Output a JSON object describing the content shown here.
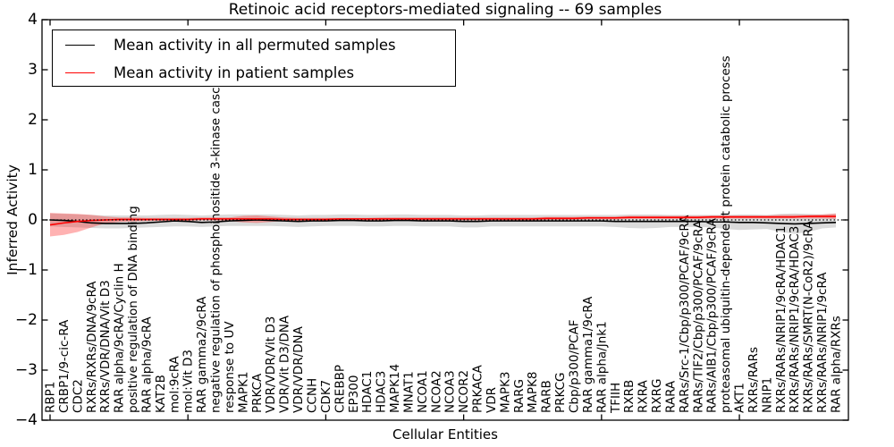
{
  "title": "Retinoic acid receptors-mediated signaling -- 69 samples",
  "axes": {
    "ylabel": "Inferred Activity",
    "xlabel": "Cellular Entities",
    "ytick_labels": [
      "4",
      "3",
      "2",
      "1",
      "0",
      "−1",
      "−2",
      "−3",
      "−4"
    ],
    "ytick_values": [
      4,
      3,
      2,
      1,
      0,
      -1,
      -2,
      -3,
      -4
    ]
  },
  "legend": {
    "entries": [
      {
        "label": "Mean activity in all permuted samples",
        "color": "#000000"
      },
      {
        "label": "Mean activity in patient samples",
        "color": "#ff0000"
      }
    ]
  },
  "colors": {
    "permuted_line": "#000000",
    "patient_line": "#ff0000",
    "permuted_band": "#000000",
    "patient_band": "#ff0000",
    "frame": "#000000"
  },
  "chart_data": {
    "type": "line",
    "title": "Retinoic acid receptors-mediated signaling -- 69 samples",
    "xlabel": "Cellular Entities",
    "ylabel": "Inferred Activity",
    "ylim": [
      -4,
      4
    ],
    "grid": false,
    "legend_position": "upper left",
    "zero_line": true,
    "categories": [
      "RBP1",
      "CRBP1/9-cic-RA",
      "CDC2",
      "RXRs/RXRs/DNA/9cRA",
      "RXRs/VDR/DNA/Vit D3",
      "RAR alpha/9cRA/Cyclin H",
      "positive regulation of DNA binding",
      "RAR alpha/9cRA",
      "KAT2B",
      "mol:9cRA",
      "mol:Vit D3",
      "RAR gamma2/9cRA",
      "negative regulation of phosphoinositide 3-kinase casc",
      "response to UV",
      "MAPK1",
      "PRKCA",
      "VDR/VDR/Vit D3",
      "VDR/Vit D3/DNA",
      "VDR/VDR/DNA",
      "CCNH",
      "CDK7",
      "CREBBP",
      "EP300",
      "HDAC1",
      "HDAC3",
      "MAPK14",
      "MNAT1",
      "NCOA1",
      "NCOA2",
      "NCOA3",
      "NCOR2",
      "PRKACA",
      "VDR",
      "MAPK3",
      "RARG",
      "MAPK8",
      "RARB",
      "PRKCG",
      "Cbp/p300/PCAF",
      "RAR gamma1/9cRA",
      "RAR alpha/Jnk1",
      "TFIIH",
      "RXRB",
      "RXRA",
      "RXRG",
      "RARA",
      "RARs/Src-1/Cbp/p300/PCAF/9cRA",
      "RARs/TIF2/Cbp/p300/PCAF/9cRA",
      "RARs/AIB1/Cbp/p300/PCAF/9cRA",
      "proteasomal ubiquitin-dependent protein catabolic process",
      "AKT1",
      "RXRs/RARs",
      "NRIP1",
      "RXRs/RARs/NRIP1/9cRA/HDAC1",
      "RXRs/RARs/NRIP1/9cRA/HDAC3",
      "RXRs/RARs/SMRT(N-CoR2)/9cRA",
      "RXRs/RARs/NRIP1/9cRA",
      "RAR alpha/RXRs"
    ],
    "series": [
      {
        "name": "Mean activity in all permuted samples",
        "color": "#000000",
        "values": [
          0.0,
          -0.01,
          -0.03,
          -0.06,
          -0.07,
          -0.07,
          -0.07,
          -0.06,
          -0.04,
          -0.02,
          -0.03,
          -0.05,
          -0.04,
          -0.02,
          -0.01,
          0.0,
          -0.01,
          -0.02,
          -0.03,
          -0.02,
          -0.02,
          -0.01,
          -0.01,
          -0.02,
          -0.02,
          -0.01,
          -0.01,
          -0.02,
          -0.02,
          -0.02,
          -0.03,
          -0.03,
          -0.02,
          -0.02,
          -0.02,
          -0.02,
          -0.02,
          -0.02,
          -0.02,
          -0.02,
          -0.02,
          -0.03,
          -0.03,
          -0.03,
          -0.03,
          -0.03,
          -0.03,
          -0.03,
          -0.04,
          -0.04,
          -0.05,
          -0.05,
          -0.06,
          -0.07,
          -0.08,
          -0.07,
          -0.06,
          -0.05
        ]
      },
      {
        "name": "Mean activity in patient samples",
        "color": "#ff0000",
        "values": [
          -0.1,
          -0.06,
          -0.03,
          -0.01,
          0.0,
          0.01,
          0.01,
          0.01,
          0.01,
          0.01,
          0.01,
          0.02,
          0.02,
          0.02,
          0.02,
          0.02,
          0.02,
          0.01,
          0.01,
          0.01,
          0.01,
          0.02,
          0.02,
          0.02,
          0.02,
          0.02,
          0.02,
          0.02,
          0.02,
          0.02,
          0.02,
          0.02,
          0.02,
          0.02,
          0.02,
          0.02,
          0.03,
          0.03,
          0.03,
          0.04,
          0.04,
          0.04,
          0.05,
          0.05,
          0.05,
          0.05,
          0.05,
          0.05,
          0.06,
          0.06,
          0.06,
          0.06,
          0.06,
          0.06,
          0.06,
          0.07,
          0.07,
          0.07
        ]
      }
    ],
    "bands": [
      {
        "name": "permuted-samples-range",
        "color": "#000000",
        "opacity": 0.14,
        "lo": [
          -0.13,
          -0.14,
          -0.15,
          -0.16,
          -0.17,
          -0.17,
          -0.16,
          -0.15,
          -0.14,
          -0.13,
          -0.13,
          -0.14,
          -0.13,
          -0.12,
          -0.12,
          -0.12,
          -0.12,
          -0.13,
          -0.14,
          -0.13,
          -0.12,
          -0.12,
          -0.12,
          -0.13,
          -0.13,
          -0.12,
          -0.12,
          -0.13,
          -0.13,
          -0.13,
          -0.15,
          -0.15,
          -0.13,
          -0.13,
          -0.13,
          -0.13,
          -0.13,
          -0.13,
          -0.13,
          -0.13,
          -0.13,
          -0.14,
          -0.16,
          -0.17,
          -0.16,
          -0.14,
          -0.14,
          -0.14,
          -0.15,
          -0.18,
          -0.2,
          -0.19,
          -0.18,
          -0.24,
          -0.28,
          -0.24,
          -0.17,
          -0.15
        ],
        "hi": [
          0.13,
          0.12,
          0.11,
          0.1,
          0.09,
          0.09,
          0.09,
          0.09,
          0.1,
          0.11,
          0.1,
          0.09,
          0.1,
          0.11,
          0.11,
          0.11,
          0.11,
          0.1,
          0.09,
          0.1,
          0.1,
          0.11,
          0.11,
          0.1,
          0.1,
          0.11,
          0.11,
          0.1,
          0.1,
          0.1,
          0.09,
          0.09,
          0.1,
          0.1,
          0.1,
          0.1,
          0.1,
          0.1,
          0.1,
          0.1,
          0.1,
          0.1,
          0.11,
          0.11,
          0.11,
          0.1,
          0.1,
          0.1,
          0.1,
          0.1,
          0.11,
          0.11,
          0.1,
          0.12,
          0.13,
          0.12,
          0.11,
          0.12
        ]
      },
      {
        "name": "patient-samples-range",
        "color": "#ff0000",
        "opacity": 0.3,
        "lo": [
          -0.33,
          -0.3,
          -0.24,
          -0.15,
          -0.07,
          -0.04,
          -0.03,
          -0.02,
          -0.02,
          -0.02,
          -0.02,
          -0.01,
          -0.01,
          -0.02,
          -0.05,
          -0.06,
          -0.04,
          -0.02,
          -0.02,
          -0.01,
          -0.01,
          -0.01,
          -0.01,
          -0.01,
          -0.01,
          -0.01,
          -0.01,
          -0.01,
          -0.01,
          -0.01,
          -0.01,
          -0.01,
          -0.01,
          -0.01,
          -0.01,
          -0.01,
          0.0,
          0.0,
          0.0,
          0.01,
          0.01,
          0.01,
          0.02,
          0.02,
          0.02,
          0.02,
          0.02,
          0.02,
          0.03,
          0.03,
          0.03,
          0.03,
          0.03,
          0.03,
          0.03,
          0.03,
          0.03,
          0.02
        ],
        "hi": [
          0.14,
          0.13,
          0.12,
          0.1,
          0.07,
          0.05,
          0.05,
          0.04,
          0.04,
          0.04,
          0.04,
          0.05,
          0.05,
          0.05,
          0.08,
          0.09,
          0.07,
          0.05,
          0.04,
          0.04,
          0.04,
          0.04,
          0.04,
          0.04,
          0.05,
          0.05,
          0.05,
          0.05,
          0.05,
          0.05,
          0.05,
          0.05,
          0.05,
          0.05,
          0.05,
          0.05,
          0.06,
          0.06,
          0.06,
          0.07,
          0.07,
          0.07,
          0.08,
          0.08,
          0.08,
          0.08,
          0.08,
          0.08,
          0.09,
          0.09,
          0.09,
          0.09,
          0.09,
          0.1,
          0.1,
          0.1,
          0.11,
          0.13
        ]
      }
    ]
  }
}
